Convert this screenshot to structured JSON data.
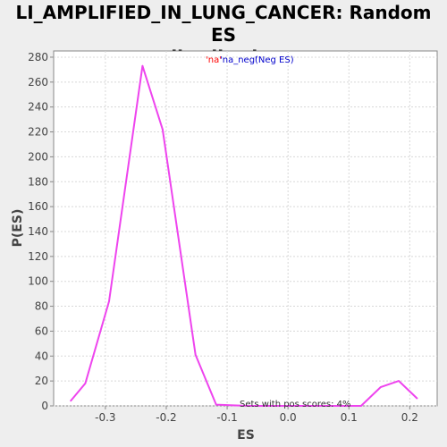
{
  "chart_data": {
    "type": "line",
    "title_line1": "LI_AMPLIFIED_IN_LUNG_CANCER: Random ES",
    "title_line2": "distribution",
    "xlabel": "ES",
    "ylabel": "P(ES)",
    "xlim": [
      -0.385,
      0.245
    ],
    "ylim": [
      0,
      285
    ],
    "xticks": [
      -0.3,
      -0.2,
      -0.1,
      0.0,
      0.1,
      0.2
    ],
    "xtick_labels": [
      "-0.3",
      "-0.2",
      "-0.1",
      "0.0",
      "0.1",
      "0.2"
    ],
    "yticks": [
      0,
      20,
      40,
      60,
      80,
      100,
      120,
      140,
      160,
      180,
      200,
      220,
      240,
      260,
      280
    ],
    "ytick_labels": [
      "0",
      "20",
      "40",
      "60",
      "80",
      "100",
      "120",
      "140",
      "160",
      "180",
      "200",
      "220",
      "240",
      "260",
      "280"
    ],
    "grid": true,
    "legend": {
      "part_na": "'na'",
      "part_na_neg": "'na_neg'",
      "part_neg": "(Neg ES)",
      "color_na": "#ff0000",
      "color_na_neg": "#0000cc"
    },
    "annotation": "Sets with pos scores: 4%",
    "series": [
      {
        "color": "#ee44ee",
        "x": [
          -0.357,
          -0.333,
          -0.294,
          -0.239,
          -0.206,
          -0.152,
          -0.118,
          -0.065,
          0.0,
          0.065,
          0.12,
          0.152,
          0.182,
          0.212
        ],
        "y": [
          4,
          18,
          84,
          273,
          222,
          41,
          1,
          0,
          0,
          0,
          0,
          15,
          20,
          6
        ]
      }
    ]
  }
}
